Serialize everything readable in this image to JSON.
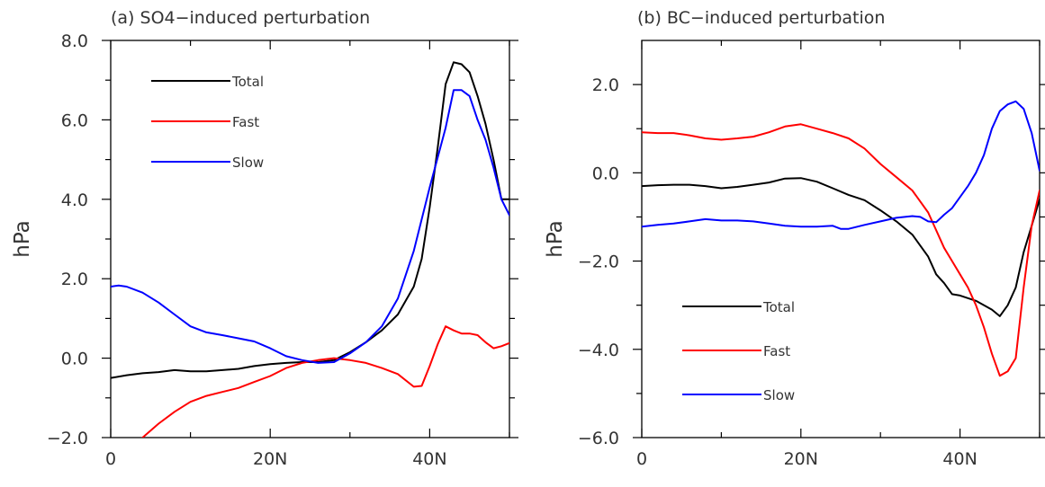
{
  "chart_data": [
    {
      "type": "line",
      "title": "(a) SO4−induced perturbation",
      "xlabel": "",
      "ylabel": "hPa",
      "xlim": [
        0,
        50
      ],
      "ylim": [
        -2,
        8
      ],
      "xticks": [
        0,
        10,
        20,
        30,
        40,
        50
      ],
      "xtick_labels": [
        "0",
        "",
        "20N",
        "",
        "40N",
        ""
      ],
      "yticks": [
        -2,
        0,
        2,
        4,
        6,
        8
      ],
      "ytick_labels": [
        "−2.0",
        "0.0",
        "2.0",
        "4.0",
        "6.0",
        "8.0"
      ],
      "legend_position": "upper-left",
      "series": [
        {
          "name": "Total",
          "color": "#000000",
          "x": [
            0,
            2,
            4,
            6,
            8,
            10,
            12,
            14,
            16,
            18,
            20,
            22,
            24,
            26,
            28,
            30,
            32,
            34,
            36,
            38,
            39,
            40,
            41,
            42,
            43,
            44,
            45,
            46,
            47,
            48,
            49,
            50
          ],
          "y": [
            -0.5,
            -0.43,
            -0.38,
            -0.35,
            -0.3,
            -0.33,
            -0.33,
            -0.3,
            -0.27,
            -0.2,
            -0.15,
            -0.12,
            -0.1,
            -0.1,
            -0.05,
            0.15,
            0.4,
            0.7,
            1.1,
            1.8,
            2.5,
            3.8,
            5.3,
            6.9,
            7.45,
            7.4,
            7.2,
            6.6,
            5.9,
            5.0,
            4.0,
            4.0
          ]
        },
        {
          "name": "Fast",
          "color": "#ff0000",
          "x": [
            4,
            6,
            8,
            10,
            12,
            14,
            16,
            18,
            20,
            22,
            24,
            26,
            28,
            30,
            32,
            34,
            36,
            38,
            39,
            40,
            41,
            42,
            43,
            44,
            45,
            46,
            47,
            48,
            49,
            50
          ],
          "y": [
            -2.0,
            -1.65,
            -1.35,
            -1.1,
            -0.95,
            -0.85,
            -0.75,
            -0.6,
            -0.45,
            -0.25,
            -0.12,
            -0.05,
            0.0,
            -0.05,
            -0.12,
            -0.25,
            -0.4,
            -0.72,
            -0.7,
            -0.2,
            0.35,
            0.8,
            0.7,
            0.62,
            0.62,
            0.58,
            0.4,
            0.25,
            0.3,
            0.38
          ]
        },
        {
          "name": "Slow",
          "color": "#0000ff",
          "x": [
            0,
            1,
            2,
            4,
            6,
            8,
            10,
            12,
            14,
            16,
            18,
            20,
            22,
            24,
            26,
            28,
            30,
            32,
            34,
            36,
            38,
            40,
            42,
            43,
            44,
            45,
            46,
            47,
            48,
            49,
            50
          ],
          "y": [
            1.8,
            1.83,
            1.8,
            1.65,
            1.4,
            1.1,
            0.8,
            0.65,
            0.58,
            0.5,
            0.42,
            0.25,
            0.05,
            -0.05,
            -0.12,
            -0.1,
            0.12,
            0.4,
            0.8,
            1.5,
            2.7,
            4.3,
            5.8,
            6.75,
            6.75,
            6.6,
            6.0,
            5.5,
            4.8,
            4.0,
            3.6
          ]
        }
      ]
    },
    {
      "type": "line",
      "title": "(b) BC−induced perturbation",
      "xlabel": "",
      "ylabel": "hPa",
      "xlim": [
        0,
        50
      ],
      "ylim": [
        -6,
        3
      ],
      "xticks": [
        0,
        10,
        20,
        30,
        40,
        50
      ],
      "xtick_labels": [
        "0",
        "",
        "20N",
        "",
        "40N",
        ""
      ],
      "yticks": [
        -6,
        -4,
        -2,
        0,
        2
      ],
      "ytick_labels": [
        "−6.0",
        "−4.0",
        "−2.0",
        "0.0",
        "2.0"
      ],
      "legend_position": "lower-left",
      "series": [
        {
          "name": "Total",
          "color": "#000000",
          "x": [
            0,
            2,
            4,
            6,
            8,
            10,
            12,
            14,
            16,
            18,
            20,
            22,
            24,
            26,
            28,
            30,
            32,
            34,
            36,
            37,
            38,
            39,
            40,
            42,
            44,
            45,
            46,
            47,
            48,
            49,
            50
          ],
          "y": [
            -0.3,
            -0.28,
            -0.27,
            -0.27,
            -0.3,
            -0.35,
            -0.32,
            -0.27,
            -0.22,
            -0.13,
            -0.12,
            -0.2,
            -0.35,
            -0.5,
            -0.62,
            -0.85,
            -1.1,
            -1.4,
            -1.9,
            -2.3,
            -2.5,
            -2.75,
            -2.78,
            -2.9,
            -3.1,
            -3.25,
            -3.0,
            -2.6,
            -1.8,
            -1.2,
            -0.6
          ]
        },
        {
          "name": "Fast",
          "color": "#ff0000",
          "x": [
            0,
            2,
            4,
            6,
            8,
            10,
            12,
            14,
            16,
            18,
            20,
            22,
            24,
            26,
            28,
            30,
            32,
            34,
            36,
            37,
            38,
            39,
            40,
            41,
            42,
            43,
            44,
            45,
            46,
            47,
            48,
            49,
            50
          ],
          "y": [
            0.92,
            0.9,
            0.9,
            0.85,
            0.78,
            0.75,
            0.78,
            0.82,
            0.92,
            1.05,
            1.1,
            1.0,
            0.9,
            0.78,
            0.55,
            0.2,
            -0.1,
            -0.4,
            -0.9,
            -1.3,
            -1.7,
            -2.0,
            -2.3,
            -2.6,
            -3.0,
            -3.5,
            -4.1,
            -4.6,
            -4.5,
            -4.2,
            -2.6,
            -1.2,
            -0.4
          ]
        },
        {
          "name": "Slow",
          "color": "#0000ff",
          "x": [
            0,
            2,
            4,
            6,
            8,
            10,
            12,
            14,
            16,
            18,
            20,
            22,
            24,
            25,
            26,
            28,
            30,
            32,
            34,
            35,
            36,
            37,
            38,
            39,
            40,
            41,
            42,
            43,
            44,
            45,
            46,
            47,
            48,
            49,
            50
          ],
          "y": [
            -1.22,
            -1.18,
            -1.15,
            -1.1,
            -1.05,
            -1.08,
            -1.08,
            -1.1,
            -1.15,
            -1.2,
            -1.22,
            -1.22,
            -1.2,
            -1.27,
            -1.27,
            -1.18,
            -1.1,
            -1.02,
            -0.98,
            -1.0,
            -1.1,
            -1.12,
            -0.95,
            -0.8,
            -0.55,
            -0.3,
            0.0,
            0.4,
            1.0,
            1.4,
            1.55,
            1.62,
            1.45,
            0.9,
            0.05
          ]
        }
      ]
    }
  ]
}
